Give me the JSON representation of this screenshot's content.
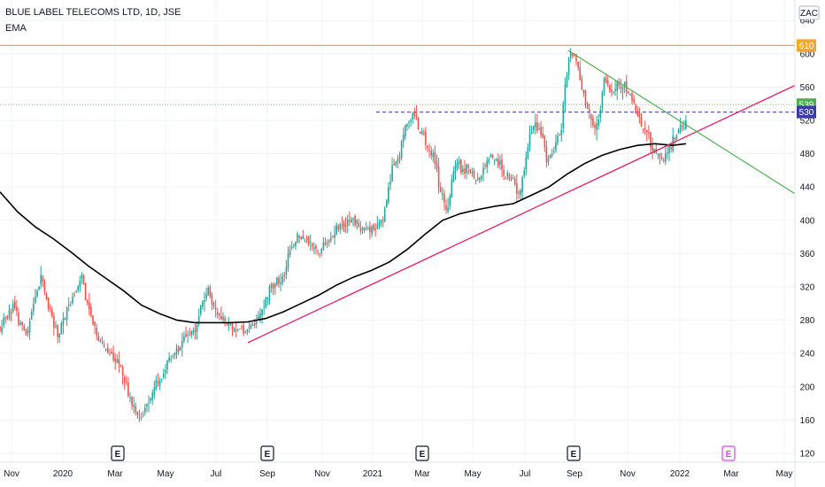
{
  "chart_data": {
    "type": "candlestick",
    "title": "BLUE LABEL TELECOMS LTD, 1D, JSE",
    "indicator": "EMA",
    "currency": "ZAC",
    "y_ticks": [
      120,
      160,
      200,
      240,
      280,
      320,
      360,
      400,
      440,
      480,
      520,
      560,
      600,
      640
    ],
    "ylim": [
      110,
      655
    ],
    "x_ticks": [
      "Nov",
      "2020",
      "Mar",
      "May",
      "Jul",
      "Sep",
      "Nov",
      "2021",
      "Mar",
      "May",
      "Jul",
      "Sep",
      "Nov",
      "2022",
      "Mar",
      "May"
    ],
    "price_path": [
      [
        0,
        270
      ],
      [
        8,
        285
      ],
      [
        15,
        300
      ],
      [
        22,
        275
      ],
      [
        30,
        260
      ],
      [
        38,
        300
      ],
      [
        46,
        330
      ],
      [
        55,
        295
      ],
      [
        65,
        262
      ],
      [
        75,
        290
      ],
      [
        84,
        310
      ],
      [
        92,
        335
      ],
      [
        100,
        295
      ],
      [
        108,
        262
      ],
      [
        117,
        248
      ],
      [
        126,
        240
      ],
      [
        134,
        232
      ],
      [
        142,
        205
      ],
      [
        150,
        175
      ],
      [
        158,
        158
      ],
      [
        166,
        178
      ],
      [
        175,
        200
      ],
      [
        184,
        215
      ],
      [
        193,
        238
      ],
      [
        203,
        250
      ],
      [
        212,
        262
      ],
      [
        220,
        270
      ],
      [
        228,
        300
      ],
      [
        235,
        318
      ],
      [
        243,
        290
      ],
      [
        252,
        280
      ],
      [
        260,
        272
      ],
      [
        270,
        270
      ],
      [
        280,
        265
      ],
      [
        288,
        278
      ],
      [
        296,
        290
      ],
      [
        304,
        318
      ],
      [
        312,
        325
      ],
      [
        320,
        330
      ],
      [
        328,
        365
      ],
      [
        336,
        378
      ],
      [
        344,
        378
      ],
      [
        352,
        372
      ],
      [
        360,
        360
      ],
      [
        368,
        372
      ],
      [
        376,
        385
      ],
      [
        384,
        395
      ],
      [
        392,
        400
      ],
      [
        400,
        398
      ],
      [
        410,
        390
      ],
      [
        418,
        388
      ],
      [
        426,
        392
      ],
      [
        434,
        405
      ],
      [
        442,
        460
      ],
      [
        450,
        468
      ],
      [
        458,
        515
      ],
      [
        466,
        530
      ],
      [
        474,
        510
      ],
      [
        482,
        488
      ],
      [
        490,
        480
      ],
      [
        498,
        430
      ],
      [
        506,
        415
      ],
      [
        514,
        470
      ],
      [
        522,
        460
      ],
      [
        530,
        465
      ],
      [
        538,
        445
      ],
      [
        546,
        458
      ],
      [
        554,
        478
      ],
      [
        562,
        470
      ],
      [
        570,
        455
      ],
      [
        578,
        448
      ],
      [
        586,
        430
      ],
      [
        594,
        470
      ],
      [
        602,
        520
      ],
      [
        610,
        510
      ],
      [
        618,
        470
      ],
      [
        626,
        485
      ],
      [
        634,
        512
      ],
      [
        642,
        595
      ],
      [
        650,
        598
      ],
      [
        656,
        565
      ],
      [
        662,
        540
      ],
      [
        668,
        520
      ],
      [
        675,
        508
      ],
      [
        682,
        570
      ],
      [
        690,
        550
      ],
      [
        698,
        560
      ],
      [
        706,
        560
      ],
      [
        714,
        545
      ],
      [
        722,
        520
      ],
      [
        730,
        505
      ],
      [
        737,
        490
      ],
      [
        744,
        480
      ],
      [
        750,
        470
      ],
      [
        756,
        485
      ],
      [
        762,
        500
      ],
      [
        768,
        512
      ],
      [
        775,
        520
      ]
    ],
    "ema": [
      [
        0,
        434
      ],
      [
        20,
        410
      ],
      [
        40,
        392
      ],
      [
        60,
        378
      ],
      [
        80,
        362
      ],
      [
        100,
        345
      ],
      [
        120,
        330
      ],
      [
        140,
        315
      ],
      [
        160,
        298
      ],
      [
        180,
        288
      ],
      [
        200,
        280
      ],
      [
        220,
        277
      ],
      [
        240,
        277
      ],
      [
        260,
        277
      ],
      [
        280,
        278
      ],
      [
        300,
        282
      ],
      [
        320,
        290
      ],
      [
        340,
        300
      ],
      [
        360,
        310
      ],
      [
        380,
        322
      ],
      [
        400,
        332
      ],
      [
        420,
        340
      ],
      [
        440,
        350
      ],
      [
        460,
        365
      ],
      [
        480,
        383
      ],
      [
        500,
        400
      ],
      [
        520,
        408
      ],
      [
        540,
        413
      ],
      [
        560,
        417
      ],
      [
        580,
        420
      ],
      [
        600,
        430
      ],
      [
        620,
        440
      ],
      [
        640,
        455
      ],
      [
        660,
        468
      ],
      [
        680,
        478
      ],
      [
        700,
        485
      ],
      [
        720,
        490
      ],
      [
        740,
        492
      ],
      [
        760,
        490
      ],
      [
        775,
        492
      ]
    ],
    "lines": {
      "resistance": {
        "value": 610,
        "color": "#f5a623",
        "label": "610"
      },
      "last_price": {
        "value": 539,
        "color": "#4caf50",
        "label": "539"
      },
      "dashed_level": {
        "value": 530,
        "color": "#3b3ba8",
        "label": "530",
        "from_x": 425
      },
      "uptrend": {
        "from": [
          280,
          253
        ],
        "to": [
          898,
          562
        ],
        "color": "#e91e63"
      },
      "downtrend": {
        "from": [
          642,
          604
        ],
        "to": [
          898,
          432
        ],
        "color": "#4caf50"
      }
    },
    "earnings_markers": [
      {
        "x": 133,
        "label": "E",
        "future": false
      },
      {
        "x": 302,
        "label": "E",
        "future": false
      },
      {
        "x": 477,
        "label": "E",
        "future": false
      },
      {
        "x": 648,
        "label": "E",
        "future": false
      },
      {
        "x": 823,
        "label": "E",
        "future": true
      }
    ],
    "colors": {
      "up": "#26a69a",
      "down": "#ef5350",
      "ema": "#000000",
      "grid": "#f0f3fa"
    }
  }
}
